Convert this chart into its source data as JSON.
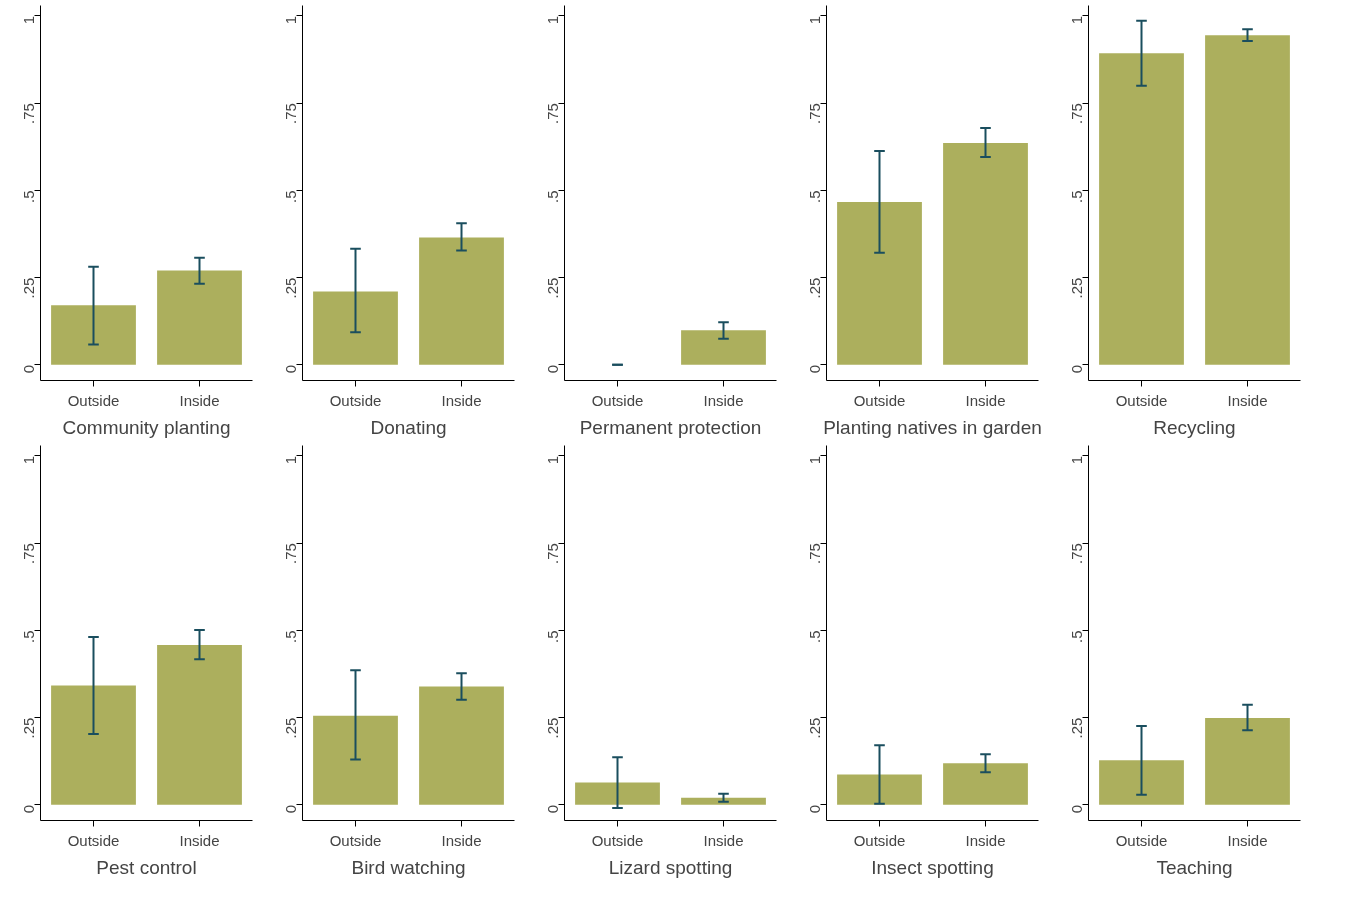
{
  "chart_data": [
    {
      "type": "bar",
      "xlabel": "Community planting",
      "categories": [
        "Outside",
        "Inside"
      ],
      "values": [
        0.171,
        0.27
      ],
      "errors": [
        [
          0.058,
          0.281
        ],
        [
          0.232,
          0.307
        ]
      ],
      "color": "#acaf5d",
      "ylim": [
        -0.045,
        1.03
      ],
      "yticks": [
        0,
        {
          "value": 0.25,
          "label": ".25"
        },
        {
          "value": 0.5,
          "label": ".5"
        },
        {
          "value": 0.75,
          "label": ".75"
        },
        1
      ]
    },
    {
      "type": "bar",
      "xlabel": "Donating",
      "categories": [
        "Outside",
        "Inside"
      ],
      "values": [
        0.21,
        0.365
      ],
      "errors": [
        [
          0.093,
          0.333
        ],
        [
          0.328,
          0.406
        ]
      ],
      "color": "#acaf5d",
      "ylim": [
        -0.045,
        1.03
      ],
      "yticks": [
        0,
        {
          "value": 0.25,
          "label": ".25"
        },
        {
          "value": 0.5,
          "label": ".5"
        },
        {
          "value": 0.75,
          "label": ".75"
        },
        1
      ]
    },
    {
      "type": "bar",
      "xlabel": "Permanent protection",
      "categories": [
        "Outside",
        "Inside"
      ],
      "values": [
        0,
        0.099
      ],
      "errors": [
        [
          0,
          0
        ],
        [
          0.075,
          0.122
        ]
      ],
      "color": "#acaf5d",
      "ylim": [
        -0.045,
        1.03
      ],
      "yticks": [
        0,
        {
          "value": 0.25,
          "label": ".25"
        },
        {
          "value": 0.5,
          "label": ".5"
        },
        {
          "value": 0.75,
          "label": ".75"
        },
        1
      ]
    },
    {
      "type": "bar",
      "xlabel": "Planting natives in garden",
      "categories": [
        "Outside",
        "Inside"
      ],
      "values": [
        0.467,
        0.636
      ],
      "errors": [
        [
          0.321,
          0.613
        ],
        [
          0.596,
          0.679
        ]
      ],
      "color": "#acaf5d",
      "ylim": [
        -0.045,
        1.03
      ],
      "yticks": [
        0,
        {
          "value": 0.25,
          "label": ".25"
        },
        {
          "value": 0.5,
          "label": ".5"
        },
        {
          "value": 0.75,
          "label": ".75"
        },
        1
      ]
    },
    {
      "type": "bar",
      "xlabel": "Recycling",
      "categories": [
        "Outside",
        "Inside"
      ],
      "values": [
        0.893,
        0.945
      ],
      "errors": [
        [
          0.8,
          0.986
        ],
        [
          0.928,
          0.962
        ]
      ],
      "color": "#acaf5d",
      "ylim": [
        -0.045,
        1.03
      ],
      "yticks": [
        0,
        {
          "value": 0.25,
          "label": ".25"
        },
        {
          "value": 0.5,
          "label": ".5"
        },
        {
          "value": 0.75,
          "label": ".75"
        },
        1
      ]
    },
    {
      "type": "bar",
      "xlabel": "Pest control",
      "categories": [
        "Outside",
        "Inside"
      ],
      "values": [
        0.342,
        0.458
      ],
      "errors": [
        [
          0.203,
          0.481
        ],
        [
          0.417,
          0.501
        ]
      ],
      "color": "#acaf5d",
      "ylim": [
        -0.045,
        1.03
      ],
      "yticks": [
        0,
        {
          "value": 0.25,
          "label": ".25"
        },
        {
          "value": 0.5,
          "label": ".5"
        },
        {
          "value": 0.75,
          "label": ".75"
        },
        1
      ]
    },
    {
      "type": "bar",
      "xlabel": "Bird watching",
      "categories": [
        "Outside",
        "Inside"
      ],
      "values": [
        0.255,
        0.339
      ],
      "errors": [
        [
          0.13,
          0.386
        ],
        [
          0.301,
          0.377
        ]
      ],
      "color": "#acaf5d",
      "ylim": [
        -0.045,
        1.03
      ],
      "yticks": [
        0,
        {
          "value": 0.25,
          "label": ".25"
        },
        {
          "value": 0.5,
          "label": ".5"
        },
        {
          "value": 0.75,
          "label": ".75"
        },
        1
      ]
    },
    {
      "type": "bar",
      "xlabel": "Lizard spotting",
      "categories": [
        "Outside",
        "Inside"
      ],
      "values": [
        0.064,
        0.02
      ],
      "errors": [
        [
          -0.009,
          0.136
        ],
        [
          0.009,
          0.032
        ]
      ],
      "color": "#acaf5d",
      "ylim": [
        -0.045,
        1.03
      ],
      "yticks": [
        0,
        {
          "value": 0.25,
          "label": ".25"
        },
        {
          "value": 0.5,
          "label": ".5"
        },
        {
          "value": 0.75,
          "label": ".75"
        },
        1
      ]
    },
    {
      "type": "bar",
      "xlabel": "Insect spotting",
      "categories": [
        "Outside",
        "Inside"
      ],
      "values": [
        0.087,
        0.119
      ],
      "errors": [
        [
          0.003,
          0.171
        ],
        [
          0.093,
          0.145
        ]
      ],
      "color": "#acaf5d",
      "ylim": [
        -0.045,
        1.03
      ],
      "yticks": [
        0,
        {
          "value": 0.25,
          "label": ".25"
        },
        {
          "value": 0.5,
          "label": ".5"
        },
        {
          "value": 0.75,
          "label": ".75"
        },
        1
      ]
    },
    {
      "type": "bar",
      "xlabel": "Teaching",
      "categories": [
        "Outside",
        "Inside"
      ],
      "values": [
        0.128,
        0.249
      ],
      "errors": [
        [
          0.029,
          0.226
        ],
        [
          0.214,
          0.287
        ]
      ],
      "color": "#acaf5d",
      "ylim": [
        -0.045,
        1.03
      ],
      "yticks": [
        0,
        {
          "value": 0.25,
          "label": ".25"
        },
        {
          "value": 0.5,
          "label": ".5"
        },
        {
          "value": 0.75,
          "label": ".75"
        },
        1
      ]
    }
  ]
}
